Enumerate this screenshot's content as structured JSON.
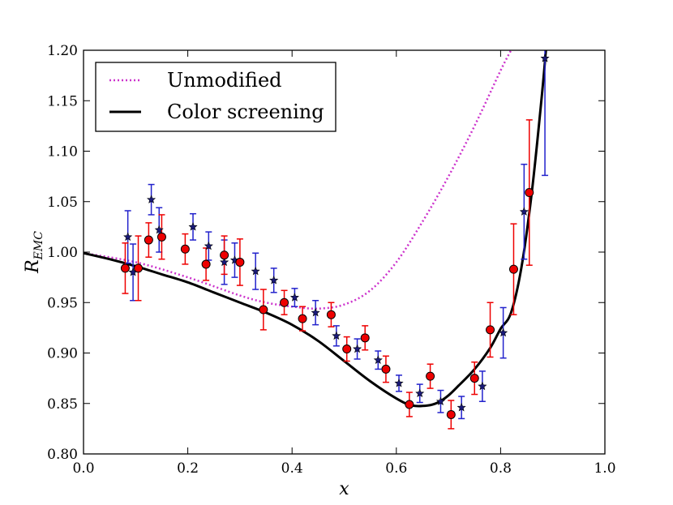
{
  "chart_data": {
    "type": "line",
    "title": "",
    "xlabel": "x",
    "ylabel": "R",
    "ylabel_subscript": "EMC",
    "xlim": [
      0.0,
      1.0
    ],
    "ylim": [
      0.8,
      1.2
    ],
    "xticks": [
      "0.0",
      "0.2",
      "0.4",
      "0.6",
      "0.8",
      "1.0"
    ],
    "yticks": [
      "0.80",
      "0.85",
      "0.90",
      "0.95",
      "1.00",
      "1.05",
      "1.10",
      "1.15",
      "1.20"
    ],
    "legend": {
      "placement": "top-left",
      "entries": [
        {
          "label": "Unmodified",
          "style": "dotted",
          "color": "#cc33cc"
        },
        {
          "label": "Color screening",
          "style": "solid",
          "color": "#000000"
        }
      ]
    },
    "series": [
      {
        "name": "Unmodified",
        "kind": "line",
        "style": "dotted",
        "color": "#cc33cc",
        "x": [
          0.0,
          0.1,
          0.2,
          0.3,
          0.35,
          0.4,
          0.45,
          0.5,
          0.55,
          0.6,
          0.65,
          0.7,
          0.75,
          0.8,
          0.82
        ],
        "y": [
          0.999,
          0.99,
          0.975,
          0.957,
          0.95,
          0.946,
          0.944,
          0.948,
          0.962,
          0.99,
          1.03,
          1.075,
          1.125,
          1.18,
          1.2
        ]
      },
      {
        "name": "Color screening",
        "kind": "line",
        "style": "solid",
        "color": "#000000",
        "x": [
          0.0,
          0.05,
          0.1,
          0.15,
          0.2,
          0.25,
          0.3,
          0.35,
          0.4,
          0.45,
          0.5,
          0.55,
          0.6,
          0.63,
          0.66,
          0.68,
          0.7,
          0.72,
          0.75,
          0.78,
          0.8,
          0.82,
          0.84,
          0.86,
          0.88,
          0.89
        ],
        "y": [
          0.999,
          0.993,
          0.986,
          0.978,
          0.97,
          0.96,
          0.95,
          0.94,
          0.928,
          0.912,
          0.892,
          0.872,
          0.855,
          0.848,
          0.848,
          0.851,
          0.858,
          0.868,
          0.884,
          0.905,
          0.924,
          0.94,
          0.985,
          1.06,
          1.16,
          1.22
        ]
      },
      {
        "name": "Red data",
        "kind": "scatter",
        "marker": "circle",
        "color": "#ee0000",
        "x": [
          0.08,
          0.105,
          0.125,
          0.15,
          0.195,
          0.235,
          0.27,
          0.3,
          0.345,
          0.385,
          0.42,
          0.475,
          0.505,
          0.54,
          0.58,
          0.625,
          0.665,
          0.705,
          0.75,
          0.78,
          0.825,
          0.855
        ],
        "y": [
          0.984,
          0.984,
          1.012,
          1.015,
          1.003,
          0.988,
          0.997,
          0.99,
          0.943,
          0.95,
          0.934,
          0.938,
          0.904,
          0.915,
          0.884,
          0.849,
          0.877,
          0.839,
          0.875,
          0.923,
          0.983,
          1.059
        ],
        "err": [
          0.025,
          0.032,
          0.017,
          0.022,
          0.015,
          0.016,
          0.019,
          0.023,
          0.02,
          0.012,
          0.012,
          0.012,
          0.012,
          0.012,
          0.013,
          0.012,
          0.012,
          0.014,
          0.016,
          0.027,
          0.045,
          0.072
        ]
      },
      {
        "name": "Blue data",
        "kind": "scatter",
        "marker": "star",
        "color": "#2222cc",
        "x": [
          0.085,
          0.095,
          0.13,
          0.145,
          0.21,
          0.24,
          0.27,
          0.29,
          0.33,
          0.365,
          0.405,
          0.445,
          0.485,
          0.525,
          0.565,
          0.605,
          0.645,
          0.685,
          0.725,
          0.765,
          0.805,
          0.845,
          0.885
        ],
        "y": [
          1.015,
          0.98,
          1.052,
          1.022,
          1.025,
          1.006,
          0.99,
          0.992,
          0.981,
          0.972,
          0.955,
          0.94,
          0.917,
          0.904,
          0.893,
          0.87,
          0.86,
          0.852,
          0.846,
          0.867,
          0.92,
          1.04,
          1.192
        ]
      },
      {
        "name": "Blue data errors",
        "kind": "errors",
        "err": [
          0.026,
          0.028,
          0.015,
          0.022,
          0.013,
          0.014,
          0.022,
          0.017,
          0.018,
          0.012,
          0.009,
          0.012,
          0.01,
          0.01,
          0.009,
          0.008,
          0.009,
          0.011,
          0.011,
          0.015,
          0.025,
          0.047,
          0.116
        ]
      }
    ]
  }
}
